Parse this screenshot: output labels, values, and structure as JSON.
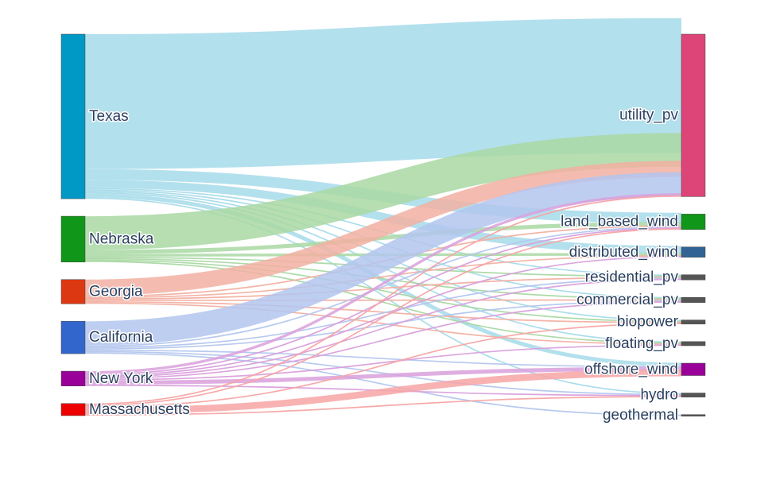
{
  "chart_data": {
    "type": "sankey",
    "sources": [
      {
        "name": "Texas",
        "color": "#0099C6"
      },
      {
        "name": "Nebraska",
        "color": "#109618"
      },
      {
        "name": "Georgia",
        "color": "#DC3912"
      },
      {
        "name": "California",
        "color": "#3366CC"
      },
      {
        "name": "New York",
        "color": "#990099"
      },
      {
        "name": "Massachusetts",
        "color": "#EE0000"
      }
    ],
    "targets": [
      {
        "name": "utility_pv",
        "color": "#DD4477"
      },
      {
        "name": "land_based_wind",
        "color": "#109618"
      },
      {
        "name": "distributed_wind",
        "color": "#316395"
      },
      {
        "name": "residential_pv",
        "color": "#555555"
      },
      {
        "name": "commercial_pv",
        "color": "#555555"
      },
      {
        "name": "biopower",
        "color": "#555555"
      },
      {
        "name": "floating_pv",
        "color": "#555555"
      },
      {
        "name": "offshore_wind",
        "color": "#990099"
      },
      {
        "name": "hydro",
        "color": "#555555"
      },
      {
        "name": "geothermal",
        "color": "#555555"
      }
    ],
    "link_colors": {
      "Texas": "#a6dbea",
      "Nebraska": "#a9d8a3",
      "Georgia": "#f2b0a2",
      "California": "#b3c6ee",
      "New York": "#d9a0dc",
      "Massachusetts": "#f7a4a4"
    },
    "links": [
      {
        "source": "Texas",
        "target": "utility_pv",
        "value": 100
      },
      {
        "source": "Texas",
        "target": "land_based_wind",
        "value": 8
      },
      {
        "source": "Texas",
        "target": "distributed_wind",
        "value": 6
      },
      {
        "source": "Texas",
        "target": "residential_pv",
        "value": 1
      },
      {
        "source": "Texas",
        "target": "commercial_pv",
        "value": 1
      },
      {
        "source": "Texas",
        "target": "biopower",
        "value": 1
      },
      {
        "source": "Texas",
        "target": "floating_pv",
        "value": 1
      },
      {
        "source": "Texas",
        "target": "offshore_wind",
        "value": 3
      },
      {
        "source": "Texas",
        "target": "hydro",
        "value": 1
      },
      {
        "source": "Nebraska",
        "target": "utility_pv",
        "value": 25
      },
      {
        "source": "Nebraska",
        "target": "land_based_wind",
        "value": 3
      },
      {
        "source": "Nebraska",
        "target": "distributed_wind",
        "value": 2
      },
      {
        "source": "Nebraska",
        "target": "residential_pv",
        "value": 1
      },
      {
        "source": "Nebraska",
        "target": "commercial_pv",
        "value": 1
      },
      {
        "source": "Nebraska",
        "target": "biopower",
        "value": 1
      },
      {
        "source": "Nebraska",
        "target": "floating_pv",
        "value": 1
      },
      {
        "source": "Georgia",
        "target": "utility_pv",
        "value": 12
      },
      {
        "source": "Georgia",
        "target": "land_based_wind",
        "value": 1
      },
      {
        "source": "Georgia",
        "target": "distributed_wind",
        "value": 1
      },
      {
        "source": "Georgia",
        "target": "residential_pv",
        "value": 1
      },
      {
        "source": "Georgia",
        "target": "commercial_pv",
        "value": 1
      },
      {
        "source": "Georgia",
        "target": "biopower",
        "value": 1
      },
      {
        "source": "Georgia",
        "target": "floating_pv",
        "value": 1
      },
      {
        "source": "California",
        "target": "utility_pv",
        "value": 18
      },
      {
        "source": "California",
        "target": "land_based_wind",
        "value": 1
      },
      {
        "source": "California",
        "target": "residential_pv",
        "value": 1
      },
      {
        "source": "California",
        "target": "commercial_pv",
        "value": 1
      },
      {
        "source": "California",
        "target": "offshore_wind",
        "value": 1
      },
      {
        "source": "California",
        "target": "hydro",
        "value": 1
      },
      {
        "source": "California",
        "target": "geothermal",
        "value": 1
      },
      {
        "source": "New York",
        "target": "utility_pv",
        "value": 2
      },
      {
        "source": "New York",
        "target": "land_based_wind",
        "value": 1
      },
      {
        "source": "New York",
        "target": "distributed_wind",
        "value": 1
      },
      {
        "source": "New York",
        "target": "residential_pv",
        "value": 1
      },
      {
        "source": "New York",
        "target": "commercial_pv",
        "value": 1
      },
      {
        "source": "New York",
        "target": "floating_pv",
        "value": 1
      },
      {
        "source": "New York",
        "target": "offshore_wind",
        "value": 3
      },
      {
        "source": "New York",
        "target": "hydro",
        "value": 1
      },
      {
        "source": "Massachusetts",
        "target": "utility_pv",
        "value": 1
      },
      {
        "source": "Massachusetts",
        "target": "land_based_wind",
        "value": 1
      },
      {
        "source": "Massachusetts",
        "target": "biopower",
        "value": 1
      },
      {
        "source": "Massachusetts",
        "target": "offshore_wind",
        "value": 5
      },
      {
        "source": "Massachusetts",
        "target": "hydro",
        "value": 1
      }
    ]
  }
}
